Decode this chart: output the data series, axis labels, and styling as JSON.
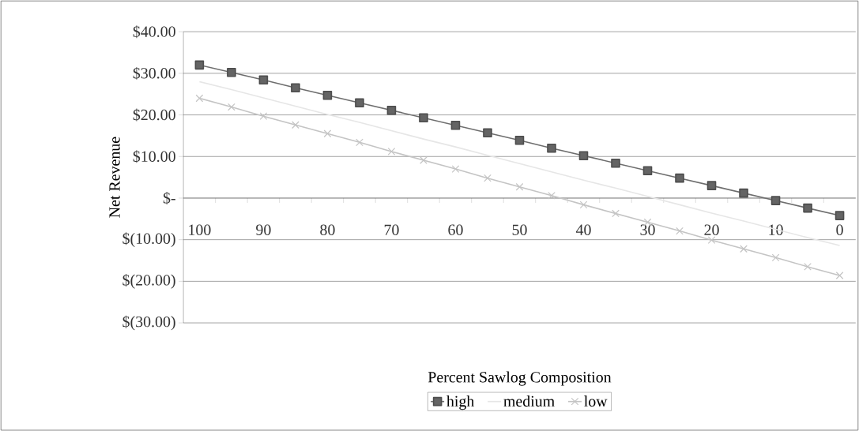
{
  "chart_data": {
    "type": "line",
    "xlabel": "Percent Sawlog Composition",
    "ylabel": "Net Revenue",
    "categories": [
      "100",
      null,
      "90",
      null,
      "80",
      null,
      "70",
      null,
      "60",
      null,
      "50",
      null,
      "40",
      null,
      "30",
      null,
      "20",
      null,
      "10",
      null,
      "0"
    ],
    "series": [
      {
        "name": "high",
        "color": "#6e6e6e",
        "marker": "square",
        "values": [
          32.0,
          30.2,
          28.4,
          26.5,
          24.7,
          22.9,
          21.1,
          19.3,
          17.5,
          15.7,
          13.9,
          12.0,
          10.2,
          8.4,
          6.6,
          4.8,
          3.0,
          1.2,
          -0.6,
          -2.4,
          -4.2
        ]
      },
      {
        "name": "medium",
        "color": "#e6e6e6",
        "marker": "none",
        "values": [
          28.0,
          26.1,
          24.1,
          22.1,
          20.1,
          18.2,
          16.2,
          14.2,
          12.3,
          10.3,
          8.3,
          6.3,
          4.3,
          2.4,
          0.4,
          -1.6,
          -3.6,
          -5.5,
          -7.5,
          -9.5,
          -11.4
        ]
      },
      {
        "name": "low",
        "color": "#c4c4c4",
        "marker": "cross",
        "values": [
          24.0,
          21.9,
          19.7,
          17.6,
          15.5,
          13.4,
          11.2,
          9.1,
          7.0,
          4.8,
          2.7,
          0.6,
          -1.6,
          -3.7,
          -5.8,
          -7.9,
          -10.1,
          -12.2,
          -14.3,
          -16.5,
          -18.6
        ]
      }
    ],
    "ylim": [
      -30,
      40
    ],
    "yticks": [
      {
        "value": -30,
        "label": "$(30.00)"
      },
      {
        "value": -20,
        "label": "$(20.00)"
      },
      {
        "value": -10,
        "label": "$(10.00)"
      },
      {
        "value": 0,
        "label": "$-"
      },
      {
        "value": 10,
        "label": "$10.00"
      },
      {
        "value": 20,
        "label": "$20.00"
      },
      {
        "value": 30,
        "label": "$30.00"
      },
      {
        "value": 40,
        "label": "$40.00"
      }
    ],
    "grid": "y",
    "legend": "bottom",
    "line_style": "solid"
  }
}
